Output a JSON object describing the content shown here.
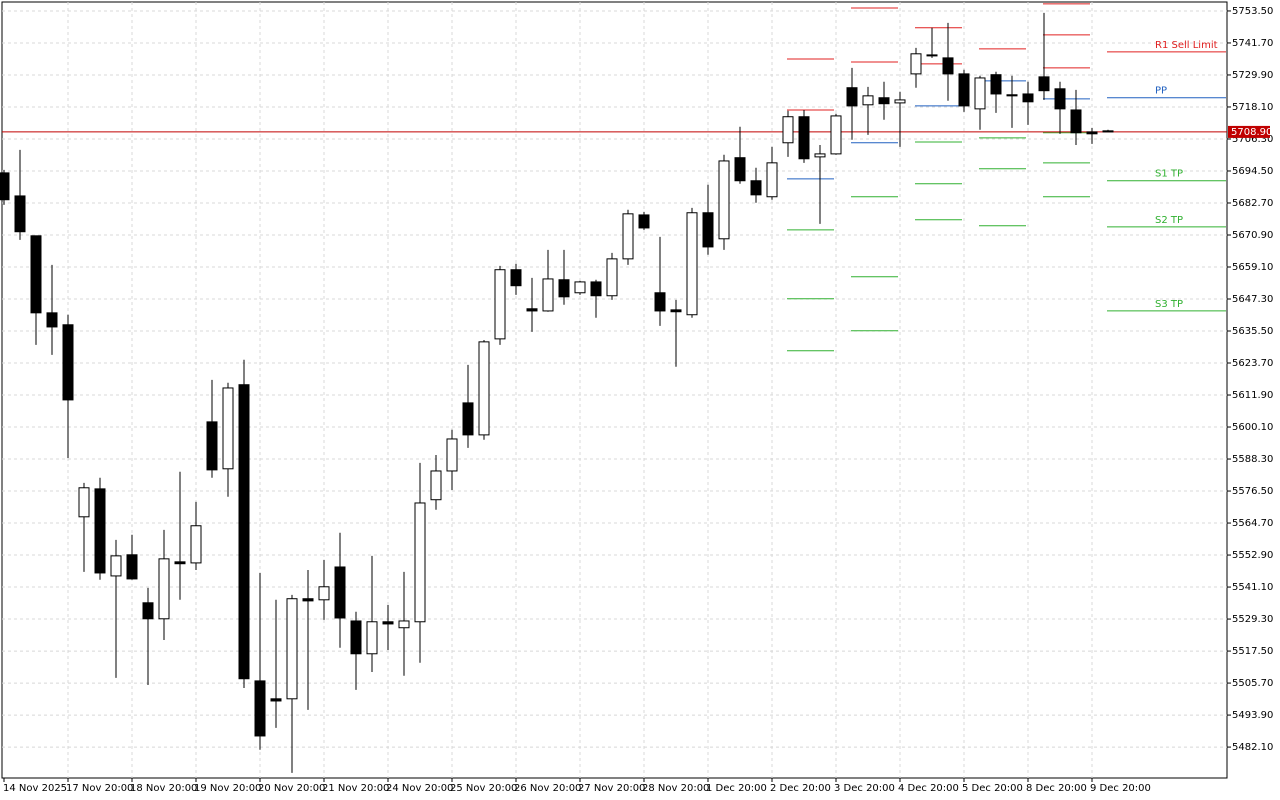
{
  "chart_data": {
    "type": "candlestick",
    "up_color": "#ffffff",
    "down_color": "#000000",
    "edge_color": "#000000",
    "ylim": [
      5470.7,
      5756.8
    ],
    "yticks": [
      {
        "value": 5753.5,
        "label": "5753.50"
      },
      {
        "value": 5741.7,
        "label": "5741.70"
      },
      {
        "value": 5729.9,
        "label": "5729.90"
      },
      {
        "value": 5718.1,
        "label": "5718.10"
      },
      {
        "value": 5706.3,
        "label": "5706.30"
      },
      {
        "value": 5694.5,
        "label": "5694.50"
      },
      {
        "value": 5682.7,
        "label": "5682.70"
      },
      {
        "value": 5670.9,
        "label": "5670.90"
      },
      {
        "value": 5659.1,
        "label": "5659.10"
      },
      {
        "value": 5647.3,
        "label": "5647.30"
      },
      {
        "value": 5635.5,
        "label": "5635.50"
      },
      {
        "value": 5623.7,
        "label": "5623.70"
      },
      {
        "value": 5611.9,
        "label": "5611.90"
      },
      {
        "value": 5600.1,
        "label": "5600.10"
      },
      {
        "value": 5588.3,
        "label": "5588.30"
      },
      {
        "value": 5576.5,
        "label": "5576.50"
      },
      {
        "value": 5564.7,
        "label": "5564.70"
      },
      {
        "value": 5552.9,
        "label": "5552.90"
      },
      {
        "value": 5541.1,
        "label": "5541.10"
      },
      {
        "value": 5529.3,
        "label": "5529.30"
      },
      {
        "value": 5517.5,
        "label": "5517.50"
      },
      {
        "value": 5505.7,
        "label": "5505.70"
      },
      {
        "value": 5493.9,
        "label": "5493.90"
      },
      {
        "value": 5482.1,
        "label": "5482.10"
      }
    ],
    "x_labels": [
      "14 Nov 2025",
      "17 Nov 20:00",
      "18 Nov 20:00",
      "19 Nov 20:00",
      "20 Nov 20:00",
      "21 Nov 20:00",
      "24 Nov 20:00",
      "25 Nov 20:00",
      "26 Nov 20:00",
      "27 Nov 20:00",
      "28 Nov 20:00",
      "1 Dec 20:00",
      "2 Dec 20:00",
      "3 Dec 20:00",
      "4 Dec 20:00",
      "5 Dec 20:00",
      "8 Dec 20:00",
      "9 Dec 20:00"
    ],
    "grid": true,
    "current": {
      "value": 5708.9,
      "label": "5708.90",
      "color": "#c00000"
    },
    "open": [
      5693.8,
      5685.3,
      5670.6,
      5642.2,
      5637.8,
      5567.0,
      5577.3,
      5545.2,
      5553.0,
      5535.3,
      5529.4,
      5550.4,
      5550.0,
      5602.0,
      5584.7,
      5615.7,
      5506.5,
      5499.9,
      5499.9,
      5536.8,
      5536.4,
      5548.5,
      5528.6,
      5516.5,
      5528.3,
      5526.1,
      5528.3,
      5573.3,
      5583.9,
      5609.0,
      5597.2,
      5632.6,
      5658.1,
      5643.7,
      5642.9,
      5654.4,
      5649.6,
      5653.6,
      5648.5,
      5662.1,
      5678.3,
      5649.6,
      5643.3,
      5641.5,
      5679.1,
      5669.5,
      5699.4,
      5690.9,
      5685.0,
      5704.9,
      5714.5,
      5699.7,
      5700.8,
      5725.2,
      5718.9,
      5721.5,
      5719.6,
      5730.3,
      5737.3,
      5736.2,
      5730.3,
      5717.4,
      5730.0,
      5722.6,
      5722.9,
      5729.2,
      5724.8,
      5717.0,
      5708.9,
      5709.3
    ],
    "close": [
      5683.9,
      5672.1,
      5642.2,
      5637.0,
      5610.1,
      5577.7,
      5546.3,
      5552.6,
      5544.1,
      5529.4,
      5551.5,
      5549.7,
      5563.7,
      5584.3,
      5614.5,
      5507.3,
      5486.2,
      5499.1,
      5536.8,
      5536.0,
      5541.2,
      5529.7,
      5516.5,
      5528.3,
      5527.5,
      5528.6,
      5572.1,
      5583.9,
      5595.7,
      5597.2,
      5631.5,
      5658.1,
      5652.2,
      5642.9,
      5654.7,
      5648.1,
      5653.6,
      5648.5,
      5662.1,
      5678.7,
      5673.5,
      5642.9,
      5642.6,
      5679.1,
      5666.5,
      5698.2,
      5690.9,
      5685.7,
      5697.5,
      5714.5,
      5699.0,
      5700.8,
      5714.8,
      5718.5,
      5722.2,
      5719.3,
      5720.7,
      5737.7,
      5737.0,
      5730.3,
      5718.5,
      5728.8,
      5722.9,
      5722.2,
      5720.0,
      5724.1,
      5717.4,
      5708.6,
      5708.2,
      5708.9
    ],
    "high": [
      5694.9,
      5702.3,
      5670.6,
      5659.9,
      5641.5,
      5579.5,
      5581.4,
      5558.5,
      5560.4,
      5540.8,
      5562.2,
      5583.6,
      5572.5,
      5617.5,
      5616.4,
      5624.9,
      5546.3,
      5536.4,
      5538.2,
      5547.4,
      5551.1,
      5561.1,
      5532.0,
      5552.6,
      5534.5,
      5546.7,
      5586.9,
      5589.8,
      5599.1,
      5623.0,
      5632.2,
      5659.5,
      5660.3,
      5655.1,
      5665.4,
      5665.4,
      5654.0,
      5654.4,
      5664.3,
      5680.2,
      5679.4,
      5670.2,
      5647.0,
      5680.9,
      5689.4,
      5700.5,
      5710.8,
      5695.7,
      5703.4,
      5716.7,
      5717.0,
      5704.1,
      5715.6,
      5732.5,
      5725.5,
      5727.4,
      5723.7,
      5739.9,
      5747.3,
      5749.1,
      5731.8,
      5729.6,
      5731.1,
      5729.6,
      5727.4,
      5752.8,
      5727.4,
      5724.4,
      5710.4,
      5709.7
    ],
    "low": [
      5682.0,
      5669.1,
      5630.4,
      5626.7,
      5588.7,
      5546.7,
      5543.8,
      5507.6,
      5543.8,
      5505.0,
      5521.6,
      5536.4,
      5547.4,
      5581.4,
      5574.4,
      5503.9,
      5481.1,
      5489.2,
      5472.6,
      5495.8,
      5529.0,
      5518.7,
      5503.2,
      5509.8,
      5517.9,
      5508.4,
      5513.2,
      5569.6,
      5576.9,
      5592.4,
      5595.4,
      5630.4,
      5648.8,
      5635.2,
      5642.6,
      5645.2,
      5648.8,
      5640.4,
      5647.0,
      5659.9,
      5672.8,
      5637.4,
      5622.3,
      5640.4,
      5663.6,
      5665.4,
      5689.8,
      5682.8,
      5683.9,
      5699.7,
      5697.5,
      5675.0,
      5700.5,
      5706.0,
      5707.8,
      5713.4,
      5703.4,
      5725.2,
      5736.2,
      5720.4,
      5716.3,
      5709.7,
      5715.9,
      5710.4,
      5711.5,
      5720.7,
      5708.2,
      5704.1,
      5704.5,
      5708.9
    ],
    "level_colors": {
      "resistance": "#e02020",
      "pivot": "#2060c0",
      "support": "#30b030"
    },
    "levels": [
      {
        "lines": [
          {
            "kind": "resistance",
            "value": 5735.8
          },
          {
            "kind": "resistance",
            "value": 5717.0
          },
          {
            "kind": "pivot",
            "value": 5691.6
          },
          {
            "kind": "support",
            "value": 5672.8
          },
          {
            "kind": "support",
            "value": 5647.4
          },
          {
            "kind": "support",
            "value": 5628.2
          }
        ]
      },
      {
        "lines": [
          {
            "kind": "resistance",
            "value": 5754.6
          },
          {
            "kind": "resistance",
            "value": 5734.7
          },
          {
            "kind": "pivot",
            "value": 5704.9
          },
          {
            "kind": "support",
            "value": 5685.0
          },
          {
            "kind": "support",
            "value": 5655.5
          },
          {
            "kind": "support",
            "value": 5635.6
          }
        ]
      },
      {
        "lines": [
          {
            "kind": "resistance",
            "value": 5747.3
          },
          {
            "kind": "resistance",
            "value": 5734.0
          },
          {
            "kind": "pivot",
            "value": 5718.5
          },
          {
            "kind": "support",
            "value": 5705.2
          },
          {
            "kind": "support",
            "value": 5689.8
          },
          {
            "kind": "support",
            "value": 5676.5
          }
        ]
      },
      {
        "lines": [
          {
            "kind": "resistance",
            "value": 5739.5
          },
          {
            "kind": "pivot",
            "value": 5727.7
          },
          {
            "kind": "support",
            "value": 5706.7
          },
          {
            "kind": "support",
            "value": 5695.3
          },
          {
            "kind": "support",
            "value": 5674.3
          }
        ]
      },
      {
        "lines": [
          {
            "kind": "resistance",
            "value": 5756.1
          },
          {
            "kind": "resistance",
            "value": 5744.7
          },
          {
            "kind": "resistance",
            "value": 5732.5
          },
          {
            "kind": "pivot",
            "value": 5721.1
          },
          {
            "kind": "support",
            "value": 5708.6
          },
          {
            "kind": "support",
            "value": 5697.5
          },
          {
            "kind": "support",
            "value": 5685.0
          }
        ]
      },
      {
        "lines": [
          {
            "kind": "resistance",
            "value": 5738.4,
            "label": "R1 Sell Limit"
          },
          {
            "kind": "pivot",
            "value": 5721.5,
            "label": "PP"
          },
          {
            "kind": "support",
            "value": 5690.9,
            "label": "S1 TP"
          },
          {
            "kind": "support",
            "value": 5673.9,
            "label": "S2 TP"
          },
          {
            "kind": "support",
            "value": 5642.9,
            "label": "S3 TP"
          }
        ]
      }
    ]
  }
}
